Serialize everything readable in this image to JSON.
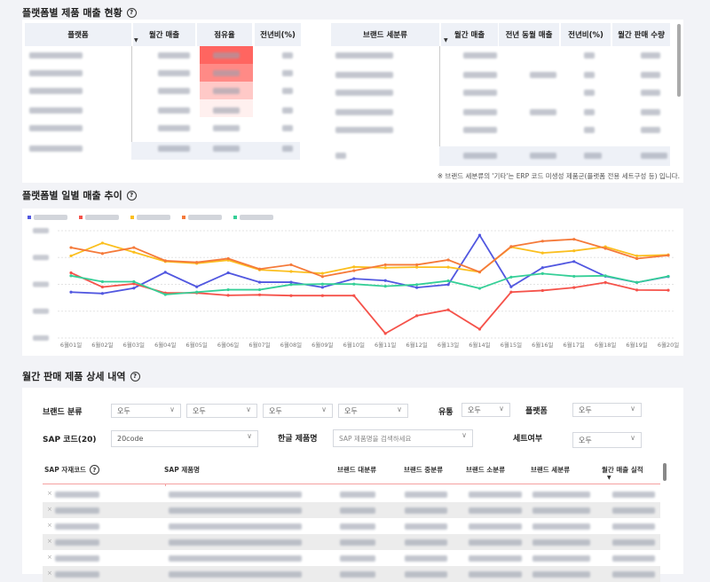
{
  "section1": {
    "title": "플랫폼별 제품 매출 현황",
    "help": "?",
    "platform_table": {
      "headers": [
        "플랫폼",
        "월간 매출",
        "점유율",
        "전년비(%)"
      ],
      "share_colors": [
        "#ff6560",
        "#ff8a86",
        "#ffc9c7",
        "#fff0ef"
      ]
    },
    "brand_table": {
      "headers": [
        "브랜드 세분류",
        "월간 매출",
        "전년 동월 매출",
        "전년비(%)",
        "월간 판매 수량"
      ]
    },
    "note": "※ 브랜드 세분류의 '기타'는 ERP 코드 미생성 제품군(플랫폼 전용 세트구성 등) 입니다."
  },
  "section2": {
    "title": "플랫폼별 일별 매출 추이",
    "help": "?"
  },
  "chart_data": {
    "type": "line",
    "x": [
      "6월01일",
      "6월02일",
      "6월03일",
      "6월04일",
      "6월05일",
      "6월06일",
      "6월07일",
      "6월08일",
      "6월09일",
      "6월10일",
      "6월11일",
      "6월12일",
      "6월13일",
      "6월14일",
      "6월15일",
      "6월16일",
      "6월17일",
      "6월18일",
      "6월19일",
      "6월20일"
    ],
    "ylim": [
      0,
      4
    ],
    "grid": true,
    "legend": "top-left",
    "series": [
      {
        "color": "#5157e0",
        "values": [
          1.71,
          1.66,
          1.86,
          2.45,
          1.91,
          2.43,
          2.08,
          2.08,
          1.89,
          2.21,
          2.14,
          1.88,
          1.99,
          3.83,
          1.91,
          2.62,
          2.85,
          2.3,
          2.07,
          2.29
        ]
      },
      {
        "color": "#f5524a",
        "values": [
          2.43,
          1.9,
          2.02,
          1.68,
          1.68,
          1.59,
          1.61,
          1.58,
          1.58,
          1.58,
          0.17,
          0.83,
          1.05,
          0.33,
          1.71,
          1.77,
          1.88,
          2.07,
          1.79,
          1.78
        ]
      },
      {
        "color": "#fbbf1e",
        "values": [
          3.06,
          3.54,
          3.2,
          2.85,
          2.78,
          2.9,
          2.54,
          2.48,
          2.41,
          2.65,
          2.62,
          2.64,
          2.64,
          2.46,
          3.39,
          3.17,
          3.25,
          3.4,
          3.06,
          3.1
        ]
      },
      {
        "color": "#f57a3a",
        "values": [
          3.37,
          3.15,
          3.37,
          2.88,
          2.82,
          2.96,
          2.57,
          2.73,
          2.29,
          2.51,
          2.73,
          2.73,
          2.91,
          2.46,
          3.41,
          3.61,
          3.68,
          3.34,
          2.96,
          3.08
        ]
      },
      {
        "color": "#35cf97",
        "values": [
          2.32,
          2.1,
          2.1,
          1.62,
          1.71,
          1.8,
          1.8,
          1.99,
          2.01,
          2.01,
          1.93,
          1.99,
          2.13,
          1.85,
          2.27,
          2.4,
          2.3,
          2.32,
          2.07,
          2.3
        ]
      }
    ]
  },
  "section3": {
    "title": "월간 판매 제품 상세 내역",
    "help": "?",
    "filters": {
      "brand_label": "브랜드 분류",
      "brand_values": [
        "오두",
        "오두",
        "오두",
        "오두"
      ],
      "dist_label": "유통",
      "dist_value": "오두",
      "platform_label": "플랫폼",
      "platform_value": "오두",
      "sap_label": "SAP 코드(20)",
      "sap_value": "20code",
      "name_label": "한글 제품명",
      "name_placeholder": "SAP 제품명을 검색하세요",
      "set_label": "세트여부",
      "set_value": "오두"
    },
    "table": {
      "headers": [
        "SAP 자재코드",
        "SAP 제품명",
        "브랜드 대분류",
        "브랜드 중분류",
        "브랜드 소분류",
        "브랜드 세분류",
        "월간 매출 실적"
      ]
    }
  }
}
